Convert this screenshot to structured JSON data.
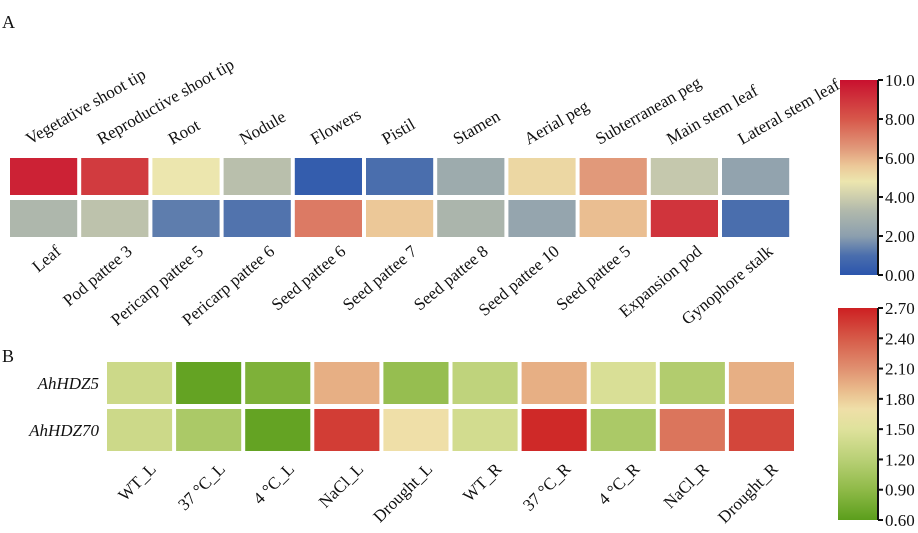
{
  "chart_data": [
    {
      "type": "heatmap",
      "panel_label": "A",
      "top_labels": [
        "Vegetative shoot tip",
        "Reproductive shoot tip",
        "Root",
        "Nodule",
        "Flowers",
        "Pistil",
        "Stamen",
        "Aerial peg",
        "Subterranean peg",
        "Main stem leaf",
        "Lateral stem leaf"
      ],
      "bottom_labels": [
        "Leaf",
        "Pod pattee 3",
        "Pericarp pattee 5",
        "Pericarp pattee 6",
        "Seed pattee 6",
        "Seed pattee 7",
        "Seed pattee 8",
        "Seed pattee 10",
        "Seed pattee 5",
        "Expansion pod",
        "Gynophore stalk"
      ],
      "values": [
        [
          9.5,
          8.8,
          4.8,
          3.5,
          0.3,
          1.0,
          2.6,
          5.2,
          6.5,
          3.8,
          2.2
        ],
        [
          3.2,
          3.6,
          1.3,
          1.1,
          7.2,
          5.6,
          3.1,
          2.3,
          5.8,
          9.0,
          1.0
        ]
      ],
      "colorbar": {
        "range": [
          0,
          10
        ],
        "ticks": [
          "0.00",
          "2.00",
          "4.00",
          "6.00",
          "8.00",
          "10.0"
        ],
        "colors": [
          [
            0,
            "#2b55ad"
          ],
          [
            1,
            "#4a6ead"
          ],
          [
            2,
            "#8c9fae"
          ],
          [
            3.3,
            "#b1b9ac"
          ],
          [
            4.8,
            "#ece6ae"
          ],
          [
            5.6,
            "#ecc898"
          ],
          [
            6.5,
            "#e1997a"
          ],
          [
            8,
            "#d7574a"
          ],
          [
            10,
            "#c8102e"
          ]
        ]
      }
    },
    {
      "type": "heatmap",
      "panel_label": "B",
      "row_labels": [
        "AhHDZ5",
        "AhHDZ70"
      ],
      "column_labels": [
        "WT_L",
        "37 °C_L",
        "4 °C_L",
        "NaCl_L",
        "Drought_L",
        "WT_R",
        "37 °C_R",
        "4 °C_R",
        "NaCl_R",
        "Drought_R"
      ],
      "values": [
        [
          1.35,
          0.65,
          0.8,
          1.95,
          0.95,
          1.25,
          1.95,
          1.45,
          1.15,
          1.95
        ],
        [
          1.35,
          1.1,
          0.65,
          2.55,
          1.7,
          1.4,
          2.65,
          1.1,
          2.25,
          2.5
        ]
      ],
      "colorbar": {
        "range": [
          0.6,
          2.7
        ],
        "ticks": [
          "0.60",
          "0.90",
          "1.20",
          "1.50",
          "1.80",
          "2.10",
          "2.40",
          "2.70"
        ],
        "colors": [
          [
            0.6,
            "#5b9e1c"
          ],
          [
            0.9,
            "#8fba48"
          ],
          [
            1.2,
            "#b9d076"
          ],
          [
            1.5,
            "#dfe29c"
          ],
          [
            1.7,
            "#efdfa8"
          ],
          [
            1.9,
            "#e9b98a"
          ],
          [
            2.1,
            "#e09070"
          ],
          [
            2.4,
            "#d65a48"
          ],
          [
            2.7,
            "#cd1f22"
          ]
        ]
      }
    }
  ]
}
